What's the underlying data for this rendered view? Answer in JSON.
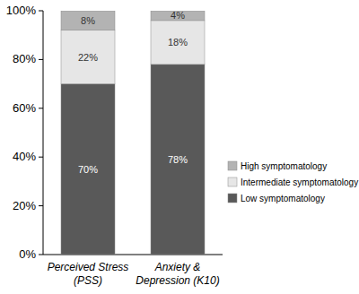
{
  "chart_data": {
    "type": "bar",
    "stacked": true,
    "data_labels": true,
    "legend": "right",
    "categories": [
      "Perceived Stress (PSS)",
      "Anxiety & Depression (K10)"
    ],
    "series": [
      {
        "name": "Low symptomatology",
        "color": "#595959",
        "values": [
          70,
          78
        ],
        "value_labels": [
          "70%",
          "78%"
        ]
      },
      {
        "name": "Intermediate symptomatology",
        "color": "#e6e6e6",
        "values": [
          22,
          18
        ],
        "value_labels": [
          "22%",
          "18%"
        ]
      },
      {
        "name": "High symptomatology",
        "color": "#b3b3b3",
        "values": [
          8,
          4
        ],
        "value_labels": [
          "8%",
          "4%"
        ]
      }
    ],
    "ylim": [
      0,
      100
    ],
    "yticks": [
      {
        "value": 0,
        "label": "0%"
      },
      {
        "value": 20,
        "label": "20%"
      },
      {
        "value": 40,
        "label": "40%"
      },
      {
        "value": 60,
        "label": "60%"
      },
      {
        "value": 80,
        "label": "80%"
      },
      {
        "value": 100,
        "label": "100%"
      }
    ]
  }
}
